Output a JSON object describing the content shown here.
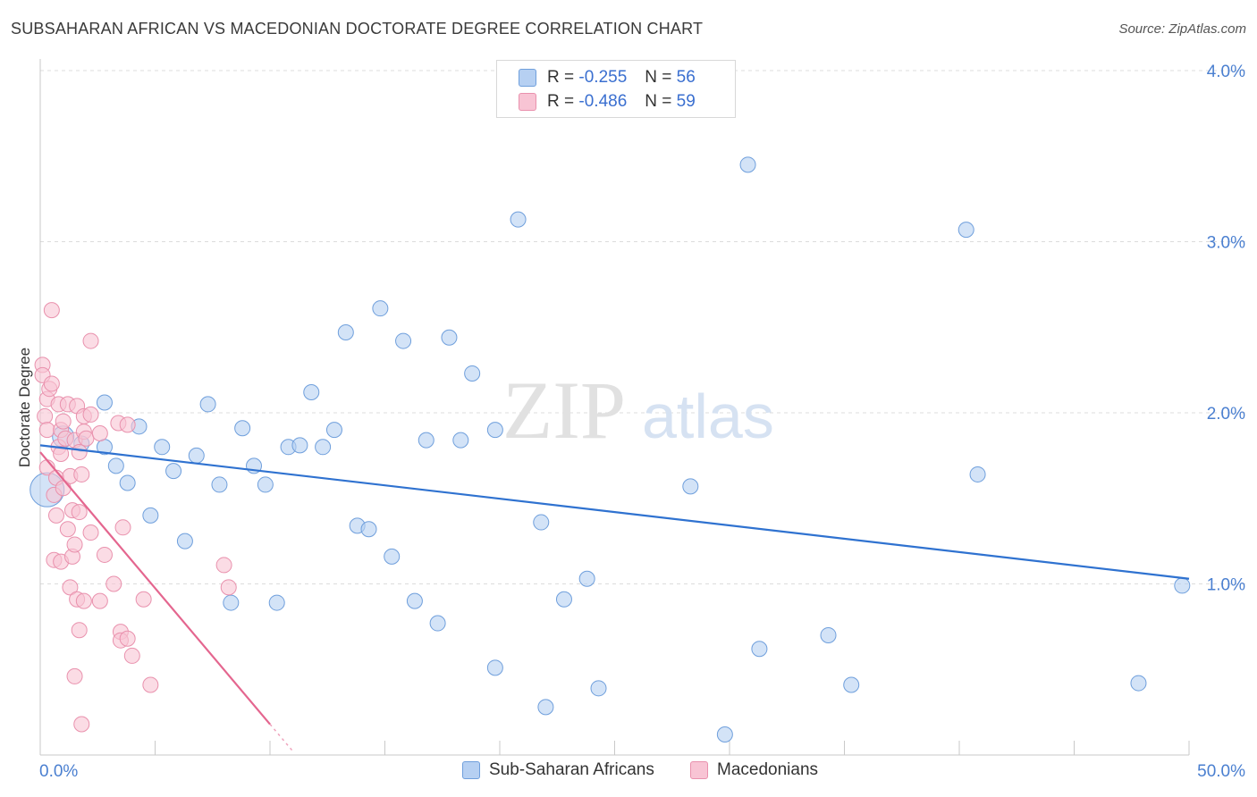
{
  "header": {
    "title": "SUBSAHARAN AFRICAN VS MACEDONIAN DOCTORATE DEGREE CORRELATION CHART",
    "source": "Source: ZipAtlas.com"
  },
  "watermark": {
    "zip": "ZIP",
    "atlas": "atlas"
  },
  "legend": {
    "series1": {
      "r_label": "R =",
      "r_value": "-0.255",
      "n_label": "N =",
      "n_value": "56"
    },
    "series2": {
      "r_label": "R =",
      "r_value": "-0.486",
      "n_label": "N =",
      "n_value": "59"
    }
  },
  "colors": {
    "blue_fill": "#b6d0f2",
    "blue_stroke": "#6f9fdc",
    "blue_line": "#2f72d0",
    "pink_fill": "#f8c4d4",
    "pink_stroke": "#e991ad",
    "pink_line": "#e4668f",
    "tick_text": "#4a7fd0",
    "grid": "#dcdcdc"
  },
  "chart_data": {
    "type": "scatter",
    "title": "SUBSAHARAN AFRICAN VS MACEDONIAN DOCTORATE DEGREE CORRELATION CHART",
    "xlabel": "",
    "ylabel": "Doctorate Degree",
    "xlim": [
      0,
      50
    ],
    "ylim": [
      0,
      4.0
    ],
    "x_tick_labels": [
      "0.0%",
      "50.0%"
    ],
    "y_ticks": [
      1.0,
      2.0,
      3.0,
      4.0
    ],
    "y_tick_labels": [
      "1.0%",
      "2.0%",
      "3.0%",
      "4.0%"
    ],
    "legend_position": "bottom",
    "series": [
      {
        "name": "Sub-Saharan Africans",
        "trend": {
          "x0": 0.0,
          "y0": 1.81,
          "x1": 50.0,
          "y1": 1.03
        },
        "points": [
          {
            "x": 0.3,
            "y": 1.55,
            "s": 3
          },
          {
            "x": 1.0,
            "y": 1.86,
            "s": 2
          },
          {
            "x": 1.8,
            "y": 1.82,
            "s": 1
          },
          {
            "x": 2.8,
            "y": 1.8,
            "s": 1
          },
          {
            "x": 2.8,
            "y": 2.06,
            "s": 1
          },
          {
            "x": 3.3,
            "y": 1.69,
            "s": 1
          },
          {
            "x": 3.8,
            "y": 1.59,
            "s": 1
          },
          {
            "x": 4.3,
            "y": 1.92,
            "s": 1
          },
          {
            "x": 4.8,
            "y": 1.4,
            "s": 1
          },
          {
            "x": 5.3,
            "y": 1.8,
            "s": 1
          },
          {
            "x": 5.8,
            "y": 1.66,
            "s": 1
          },
          {
            "x": 6.3,
            "y": 1.25,
            "s": 1
          },
          {
            "x": 6.8,
            "y": 1.75,
            "s": 1
          },
          {
            "x": 7.3,
            "y": 2.05,
            "s": 1
          },
          {
            "x": 7.8,
            "y": 1.58,
            "s": 1
          },
          {
            "x": 8.3,
            "y": 0.89,
            "s": 1
          },
          {
            "x": 8.8,
            "y": 1.91,
            "s": 1
          },
          {
            "x": 9.3,
            "y": 1.69,
            "s": 1
          },
          {
            "x": 9.8,
            "y": 1.58,
            "s": 1
          },
          {
            "x": 10.3,
            "y": 0.89,
            "s": 1
          },
          {
            "x": 10.8,
            "y": 1.8,
            "s": 1
          },
          {
            "x": 11.3,
            "y": 1.81,
            "s": 1
          },
          {
            "x": 11.8,
            "y": 2.12,
            "s": 1
          },
          {
            "x": 12.3,
            "y": 1.8,
            "s": 1
          },
          {
            "x": 12.8,
            "y": 1.9,
            "s": 1
          },
          {
            "x": 13.3,
            "y": 2.47,
            "s": 1
          },
          {
            "x": 13.8,
            "y": 1.34,
            "s": 1
          },
          {
            "x": 14.3,
            "y": 1.32,
            "s": 1
          },
          {
            "x": 14.8,
            "y": 2.61,
            "s": 1
          },
          {
            "x": 15.3,
            "y": 1.16,
            "s": 1
          },
          {
            "x": 15.8,
            "y": 2.42,
            "s": 1
          },
          {
            "x": 16.3,
            "y": 0.9,
            "s": 1
          },
          {
            "x": 16.8,
            "y": 1.84,
            "s": 1
          },
          {
            "x": 17.3,
            "y": 0.77,
            "s": 1
          },
          {
            "x": 17.8,
            "y": 2.44,
            "s": 1
          },
          {
            "x": 18.3,
            "y": 1.84,
            "s": 1
          },
          {
            "x": 18.8,
            "y": 2.23,
            "s": 1
          },
          {
            "x": 19.8,
            "y": 0.51,
            "s": 1
          },
          {
            "x": 19.8,
            "y": 1.9,
            "s": 1
          },
          {
            "x": 20.8,
            "y": 3.13,
            "s": 1
          },
          {
            "x": 21.8,
            "y": 1.36,
            "s": 1
          },
          {
            "x": 22.0,
            "y": 0.28,
            "s": 1
          },
          {
            "x": 22.8,
            "y": 0.91,
            "s": 1
          },
          {
            "x": 23.8,
            "y": 1.03,
            "s": 1
          },
          {
            "x": 24.3,
            "y": 0.39,
            "s": 1
          },
          {
            "x": 28.3,
            "y": 1.57,
            "s": 1
          },
          {
            "x": 29.8,
            "y": 0.12,
            "s": 1
          },
          {
            "x": 30.8,
            "y": 3.45,
            "s": 1
          },
          {
            "x": 31.3,
            "y": 0.62,
            "s": 1
          },
          {
            "x": 34.3,
            "y": 0.7,
            "s": 1
          },
          {
            "x": 35.3,
            "y": 0.41,
            "s": 1
          },
          {
            "x": 40.3,
            "y": 3.07,
            "s": 1
          },
          {
            "x": 40.8,
            "y": 1.64,
            "s": 1
          },
          {
            "x": 47.8,
            "y": 0.42,
            "s": 1
          },
          {
            "x": 49.7,
            "y": 0.99,
            "s": 1
          }
        ]
      },
      {
        "name": "Macedonians",
        "trend": {
          "x0": 0.0,
          "y0": 1.77,
          "x1": 10.0,
          "y1": 0.18,
          "dash_to_x": 11.0
        },
        "points": [
          {
            "x": 0.1,
            "y": 2.28,
            "s": 1
          },
          {
            "x": 0.1,
            "y": 2.22,
            "s": 1
          },
          {
            "x": 0.2,
            "y": 1.98,
            "s": 1
          },
          {
            "x": 0.3,
            "y": 1.9,
            "s": 1
          },
          {
            "x": 0.3,
            "y": 1.68,
            "s": 1
          },
          {
            "x": 0.3,
            "y": 2.08,
            "s": 1
          },
          {
            "x": 0.4,
            "y": 2.14,
            "s": 1
          },
          {
            "x": 0.5,
            "y": 2.6,
            "s": 1
          },
          {
            "x": 0.5,
            "y": 2.17,
            "s": 1
          },
          {
            "x": 0.6,
            "y": 1.52,
            "s": 1
          },
          {
            "x": 0.6,
            "y": 1.14,
            "s": 1
          },
          {
            "x": 0.7,
            "y": 1.62,
            "s": 1
          },
          {
            "x": 0.7,
            "y": 1.4,
            "s": 1
          },
          {
            "x": 0.8,
            "y": 2.05,
            "s": 1
          },
          {
            "x": 0.8,
            "y": 1.8,
            "s": 1
          },
          {
            "x": 0.9,
            "y": 1.9,
            "s": 1
          },
          {
            "x": 0.9,
            "y": 1.76,
            "s": 1
          },
          {
            "x": 0.9,
            "y": 1.13,
            "s": 1
          },
          {
            "x": 1.0,
            "y": 1.95,
            "s": 1
          },
          {
            "x": 1.0,
            "y": 1.56,
            "s": 1
          },
          {
            "x": 1.1,
            "y": 1.85,
            "s": 1
          },
          {
            "x": 1.2,
            "y": 2.05,
            "s": 1
          },
          {
            "x": 1.2,
            "y": 1.32,
            "s": 1
          },
          {
            "x": 1.3,
            "y": 1.63,
            "s": 1
          },
          {
            "x": 1.3,
            "y": 0.98,
            "s": 1
          },
          {
            "x": 1.4,
            "y": 1.43,
            "s": 1
          },
          {
            "x": 1.4,
            "y": 1.16,
            "s": 1
          },
          {
            "x": 1.5,
            "y": 1.84,
            "s": 1
          },
          {
            "x": 1.5,
            "y": 1.23,
            "s": 1
          },
          {
            "x": 1.5,
            "y": 0.46,
            "s": 1
          },
          {
            "x": 1.6,
            "y": 2.04,
            "s": 1
          },
          {
            "x": 1.6,
            "y": 0.91,
            "s": 1
          },
          {
            "x": 1.7,
            "y": 1.77,
            "s": 1
          },
          {
            "x": 1.7,
            "y": 1.42,
            "s": 1
          },
          {
            "x": 1.7,
            "y": 0.73,
            "s": 1
          },
          {
            "x": 1.8,
            "y": 1.64,
            "s": 1
          },
          {
            "x": 1.8,
            "y": 0.18,
            "s": 1
          },
          {
            "x": 1.9,
            "y": 1.98,
            "s": 1
          },
          {
            "x": 1.9,
            "y": 1.89,
            "s": 1
          },
          {
            "x": 1.9,
            "y": 0.9,
            "s": 1
          },
          {
            "x": 2.0,
            "y": 1.85,
            "s": 1
          },
          {
            "x": 2.2,
            "y": 1.3,
            "s": 1
          },
          {
            "x": 2.2,
            "y": 2.42,
            "s": 1
          },
          {
            "x": 2.2,
            "y": 1.99,
            "s": 1
          },
          {
            "x": 2.6,
            "y": 1.88,
            "s": 1
          },
          {
            "x": 2.6,
            "y": 0.9,
            "s": 1
          },
          {
            "x": 2.8,
            "y": 1.17,
            "s": 1
          },
          {
            "x": 3.2,
            "y": 1.0,
            "s": 1
          },
          {
            "x": 3.4,
            "y": 1.94,
            "s": 1
          },
          {
            "x": 3.5,
            "y": 0.72,
            "s": 1
          },
          {
            "x": 3.5,
            "y": 0.67,
            "s": 1
          },
          {
            "x": 3.6,
            "y": 1.33,
            "s": 1
          },
          {
            "x": 3.8,
            "y": 0.68,
            "s": 1
          },
          {
            "x": 3.8,
            "y": 1.93,
            "s": 1
          },
          {
            "x": 4.0,
            "y": 0.58,
            "s": 1
          },
          {
            "x": 4.5,
            "y": 0.91,
            "s": 1
          },
          {
            "x": 4.8,
            "y": 0.41,
            "s": 1
          },
          {
            "x": 8.0,
            "y": 1.11,
            "s": 1
          },
          {
            "x": 8.2,
            "y": 0.98,
            "s": 1
          }
        ]
      }
    ]
  }
}
